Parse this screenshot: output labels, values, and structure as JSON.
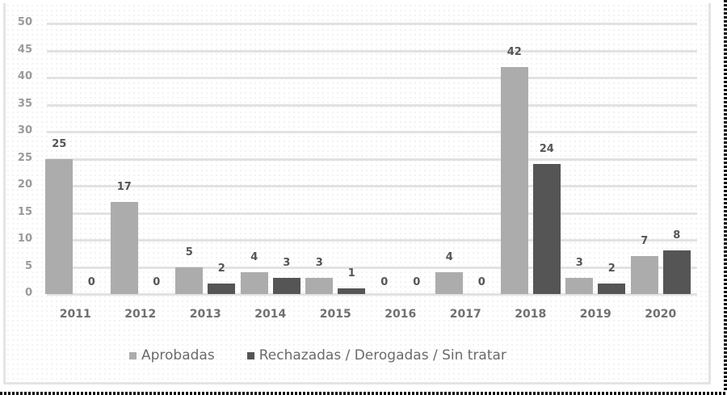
{
  "chart_data": {
    "type": "bar",
    "title": "",
    "xlabel": "",
    "ylabel": "",
    "ylim": [
      0,
      50
    ],
    "yticks": [
      0,
      5,
      10,
      15,
      20,
      25,
      30,
      35,
      40,
      45,
      50
    ],
    "grid": true,
    "legend_position": "bottom",
    "categories": [
      "2011",
      "2012",
      "2013",
      "2014",
      "2015",
      "2016",
      "2017",
      "2018",
      "2019",
      "2020"
    ],
    "series": [
      {
        "name": "Aprobadas",
        "color": "#acacac",
        "values": [
          25,
          17,
          5,
          4,
          3,
          0,
          4,
          42,
          3,
          7
        ]
      },
      {
        "name": "Rechazadas / Derogadas / Sin tratar",
        "color": "#555555",
        "values": [
          0,
          0,
          2,
          3,
          1,
          0,
          0,
          24,
          2,
          8
        ]
      }
    ]
  },
  "legend": {
    "items": [
      {
        "label": "Aprobadas",
        "color": "#acacac"
      },
      {
        "label": "Rechazadas / Derogadas / Sin tratar",
        "color": "#555555"
      }
    ]
  }
}
